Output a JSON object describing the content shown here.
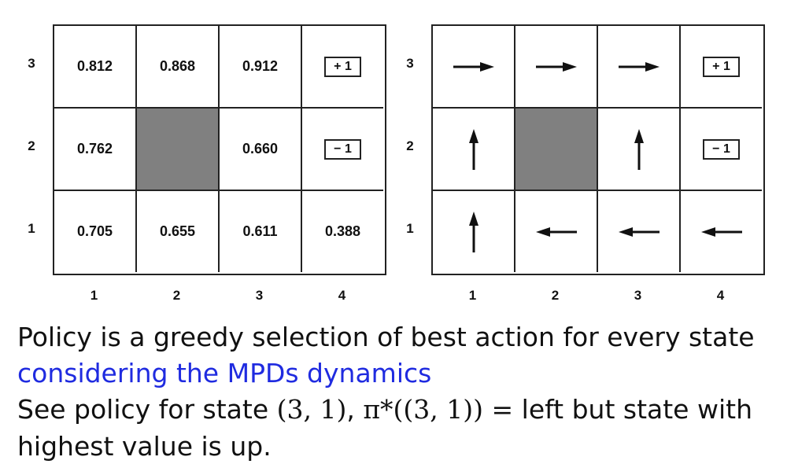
{
  "values_grid": {
    "row_labels": [
      "3",
      "2",
      "1"
    ],
    "col_labels": [
      "1",
      "2",
      "3",
      "4"
    ],
    "rows": [
      [
        {
          "type": "value",
          "text": "0.812"
        },
        {
          "type": "value",
          "text": "0.868"
        },
        {
          "type": "value",
          "text": "0.912"
        },
        {
          "type": "terminal",
          "text": "+ 1"
        }
      ],
      [
        {
          "type": "value",
          "text": "0.762"
        },
        {
          "type": "wall",
          "text": ""
        },
        {
          "type": "value",
          "text": "0.660"
        },
        {
          "type": "terminal",
          "text": "− 1"
        }
      ],
      [
        {
          "type": "value",
          "text": "0.705"
        },
        {
          "type": "value",
          "text": "0.655"
        },
        {
          "type": "value",
          "text": "0.611"
        },
        {
          "type": "value",
          "text": "0.388"
        }
      ]
    ]
  },
  "policy_grid": {
    "row_labels": [
      "3",
      "2",
      "1"
    ],
    "col_labels": [
      "1",
      "2",
      "3",
      "4"
    ],
    "rows": [
      [
        {
          "type": "arrow",
          "dir": "right"
        },
        {
          "type": "arrow",
          "dir": "right"
        },
        {
          "type": "arrow",
          "dir": "right"
        },
        {
          "type": "terminal",
          "text": "+ 1"
        }
      ],
      [
        {
          "type": "arrow",
          "dir": "up"
        },
        {
          "type": "wall"
        },
        {
          "type": "arrow",
          "dir": "up"
        },
        {
          "type": "terminal",
          "text": "− 1"
        }
      ],
      [
        {
          "type": "arrow",
          "dir": "up"
        },
        {
          "type": "arrow",
          "dir": "left"
        },
        {
          "type": "arrow",
          "dir": "left"
        },
        {
          "type": "arrow",
          "dir": "left"
        }
      ]
    ]
  },
  "caption": {
    "line1": "Policy is a greedy selection of best action for every state",
    "line2": "considering the MPDs dynamics",
    "line3_a": "See policy for state ",
    "line3_math1": "(3, 1)",
    "line3_b": ", ",
    "line3_math2": "π*((3, 1)) =",
    "line3_c": " left but state with",
    "line4": "highest value is up."
  },
  "colors": {
    "wall": "#808080",
    "link_blue": "#1f2be0"
  }
}
